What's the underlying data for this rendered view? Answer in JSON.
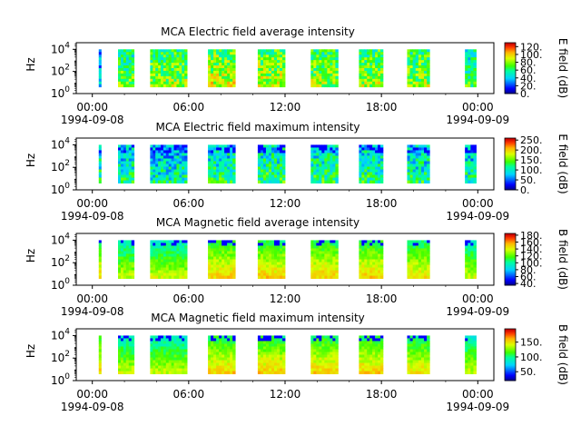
{
  "chart_data": [
    {
      "type": "heatmap",
      "title": "MCA  Electric field average intensity",
      "ylabel": "Hz",
      "y_scale": "log",
      "y_ticks": [
        "10^0",
        "10^2",
        "10^4"
      ],
      "x_ticks": [
        "00:00",
        "06:00",
        "12:00",
        "18:00",
        "00:00"
      ],
      "x_dates": [
        "1994-09-08",
        "1994-09-09"
      ],
      "colorbar_label": "E field (dB)",
      "colorbar_ticks": [
        "0.",
        "20.",
        "40.",
        "60.",
        "80.",
        "100.",
        "120."
      ],
      "value_range": [
        0,
        130
      ],
      "x_range_hours": [
        -1,
        25
      ],
      "data_intervals_hours": [
        [
          0.4,
          0.55
        ],
        [
          1.6,
          2.6
        ],
        [
          3.6,
          5.9
        ],
        [
          7.2,
          8.9
        ],
        [
          10.3,
          12.0
        ],
        [
          13.6,
          15.3
        ],
        [
          16.6,
          18.1
        ],
        [
          19.6,
          21.0
        ],
        [
          23.2,
          23.9
        ]
      ],
      "intensity_level": [
        0.25,
        0.5,
        0.55,
        0.62,
        0.6,
        0.55,
        0.58,
        0.55,
        0.45
      ]
    },
    {
      "type": "heatmap",
      "title": "MCA  Electric field maximum intensity",
      "ylabel": "Hz",
      "y_scale": "log",
      "y_ticks": [
        "10^0",
        "10^2",
        "10^4"
      ],
      "x_ticks": [
        "00:00",
        "06:00",
        "12:00",
        "18:00",
        "00:00"
      ],
      "x_dates": [
        "1994-09-08",
        "1994-09-09"
      ],
      "colorbar_label": "E field (dB)",
      "colorbar_ticks": [
        "0.",
        "50.",
        "100.",
        "150.",
        "200.",
        "250."
      ],
      "value_range": [
        0,
        260
      ],
      "x_range_hours": [
        -1,
        25
      ],
      "data_intervals_hours": [
        [
          0.4,
          0.55
        ],
        [
          1.6,
          2.6
        ],
        [
          3.6,
          5.9
        ],
        [
          7.2,
          8.9
        ],
        [
          10.3,
          12.0
        ],
        [
          13.6,
          15.3
        ],
        [
          16.6,
          18.1
        ],
        [
          19.6,
          21.0
        ],
        [
          23.2,
          23.9
        ]
      ],
      "intensity_level": [
        0.4,
        0.38,
        0.35,
        0.4,
        0.42,
        0.42,
        0.4,
        0.38,
        0.36
      ]
    },
    {
      "type": "heatmap",
      "title": "MCA  Magnetic field average intensity",
      "ylabel": "Hz",
      "y_scale": "log",
      "y_ticks": [
        "10^0",
        "10^2",
        "10^4"
      ],
      "x_ticks": [
        "00:00",
        "06:00",
        "12:00",
        "18:00",
        "00:00"
      ],
      "x_dates": [
        "1994-09-08",
        "1994-09-09"
      ],
      "colorbar_label": "B field (dB)",
      "colorbar_ticks": [
        "40.",
        "60.",
        "80.",
        "100.",
        "120.",
        "140.",
        "160.",
        "180."
      ],
      "value_range": [
        35,
        185
      ],
      "x_range_hours": [
        -1,
        25
      ],
      "data_intervals_hours": [
        [
          0.4,
          0.55
        ],
        [
          1.6,
          2.6
        ],
        [
          3.6,
          5.9
        ],
        [
          7.2,
          8.9
        ],
        [
          10.3,
          12.0
        ],
        [
          13.6,
          15.3
        ],
        [
          16.6,
          18.1
        ],
        [
          19.6,
          21.0
        ],
        [
          23.2,
          23.9
        ]
      ],
      "intensity_level": [
        0.55,
        0.45,
        0.45,
        0.55,
        0.55,
        0.55,
        0.55,
        0.52,
        0.45
      ]
    },
    {
      "type": "heatmap",
      "title": "MCA  Magnetic field maximum intensity",
      "ylabel": "Hz",
      "y_scale": "log",
      "y_ticks": [
        "10^0",
        "10^2",
        "10^4"
      ],
      "x_ticks": [
        "00:00",
        "06:00",
        "12:00",
        "18:00",
        "00:00"
      ],
      "x_dates": [
        "1994-09-08",
        "1994-09-09"
      ],
      "colorbar_label": "B field (dB)",
      "colorbar_ticks": [
        "50.",
        "100.",
        "150."
      ],
      "value_range": [
        20,
        195
      ],
      "x_range_hours": [
        -1,
        25
      ],
      "data_intervals_hours": [
        [
          0.4,
          0.55
        ],
        [
          1.6,
          2.6
        ],
        [
          3.6,
          5.9
        ],
        [
          7.2,
          8.9
        ],
        [
          10.3,
          12.0
        ],
        [
          13.6,
          15.3
        ],
        [
          16.6,
          18.1
        ],
        [
          19.6,
          21.0
        ],
        [
          23.2,
          23.9
        ]
      ],
      "intensity_level": [
        0.55,
        0.45,
        0.45,
        0.55,
        0.55,
        0.55,
        0.55,
        0.52,
        0.45
      ]
    }
  ]
}
